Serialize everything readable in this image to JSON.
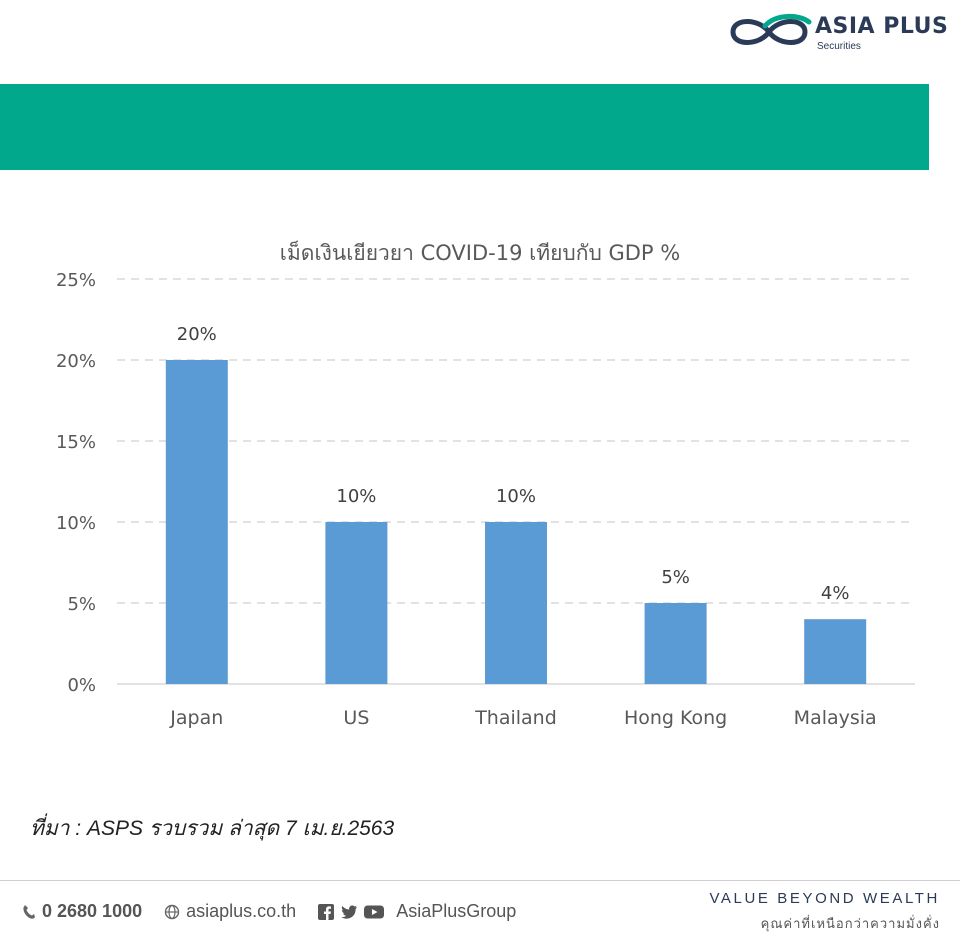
{
  "brand": {
    "name": "ASIA PLUS",
    "sub": "Securities",
    "accent": "#01a88b",
    "navy": "#2b3a57"
  },
  "chart_data": {
    "type": "bar",
    "title": "เม็ดเงินเยียวยา COVID-19 เทียบกับ GDP %",
    "categories": [
      "Japan",
      "US",
      "Thailand",
      "Hong Kong",
      "Malaysia"
    ],
    "values": [
      20,
      10,
      10,
      5,
      4
    ],
    "data_labels": [
      "20%",
      "10%",
      "10%",
      "5%",
      "4%"
    ],
    "ylim": [
      0,
      25
    ],
    "y_ticks": [
      0,
      5,
      10,
      15,
      20,
      25
    ],
    "y_tick_labels": [
      "0%",
      "5%",
      "10%",
      "15%",
      "20%",
      "25%"
    ],
    "xlabel": "",
    "ylabel": "",
    "grid": "dashed-horizontal",
    "bar_color": "#5b9bd5",
    "legend": "none"
  },
  "source_note": "ที่มา : ASPS รวบรวม ล่าสุด 7 เม.ย.2563",
  "footer": {
    "phone": "0 2680 1000",
    "website": "asiaplus.co.th",
    "social": "AsiaPlusGroup",
    "social_icons": [
      "facebook-icon",
      "twitter-icon",
      "youtube-icon"
    ],
    "tagline_en": "VALUE BEYOND WEALTH",
    "tagline_th": "คุณค่าที่เหนือกว่าความมั่งคั่ง"
  }
}
